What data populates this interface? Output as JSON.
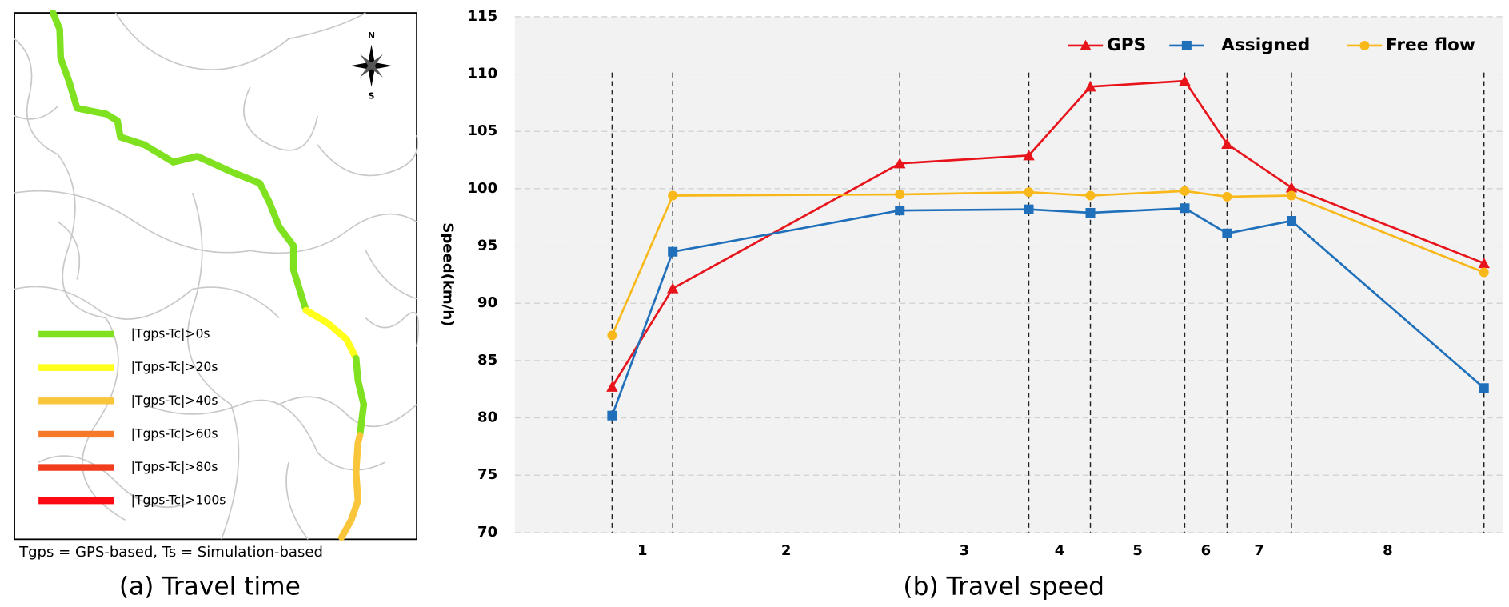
{
  "chart_data": [
    {
      "type": "map",
      "caption": "(a) Travel time",
      "note": "Tgps = GPS-based, Ts = Simulation-based",
      "compass": [
        "N",
        "S"
      ],
      "legend": [
        {
          "label": "|Tgps-Tc|>0s",
          "color": "#7fe11f"
        },
        {
          "label": "|Tgps-Tc|>20s",
          "color": "#ffff1a"
        },
        {
          "label": "|Tgps-Tc|>40s",
          "color": "#f9c53a"
        },
        {
          "label": "|Tgps-Tc|>60s",
          "color": "#f47a2a"
        },
        {
          "label": "|Tgps-Tc|>80s",
          "color": "#f23c1e"
        },
        {
          "label": "|Tgps-Tc|>100s",
          "color": "#ff0a14"
        }
      ]
    },
    {
      "type": "line",
      "caption": "(b) Travel speed",
      "y_label": "Speed(km/h)",
      "categories": [
        null,
        null,
        null,
        null,
        null,
        null,
        null,
        null,
        null
      ],
      "sections": [
        "1",
        "2",
        "3",
        "4",
        "5",
        "6",
        "7",
        "8"
      ],
      "series": [
        {
          "name": "GPS",
          "color": "#e8141b",
          "marker": "triangle",
          "values": [
            82.7,
            91.3,
            102.2,
            102.9,
            108.9,
            109.4,
            103.9,
            100.1,
            93.5
          ]
        },
        {
          "name": "Assigned",
          "color": "#1f6fba",
          "marker": "square",
          "values": [
            80.2,
            94.5,
            98.1,
            98.2,
            97.9,
            98.3,
            96.1,
            97.2,
            82.6
          ]
        },
        {
          "name": "Free flow",
          "color": "#f9b81a",
          "marker": "circle",
          "values": [
            87.2,
            99.4,
            99.5,
            99.7,
            99.4,
            99.8,
            99.3,
            99.4,
            92.7
          ]
        }
      ],
      "ylim": [
        70,
        115
      ],
      "yticks": [
        70,
        75,
        80,
        85,
        90,
        95,
        100,
        105,
        110,
        115
      ],
      "grid": true,
      "legend": "top-right"
    }
  ]
}
